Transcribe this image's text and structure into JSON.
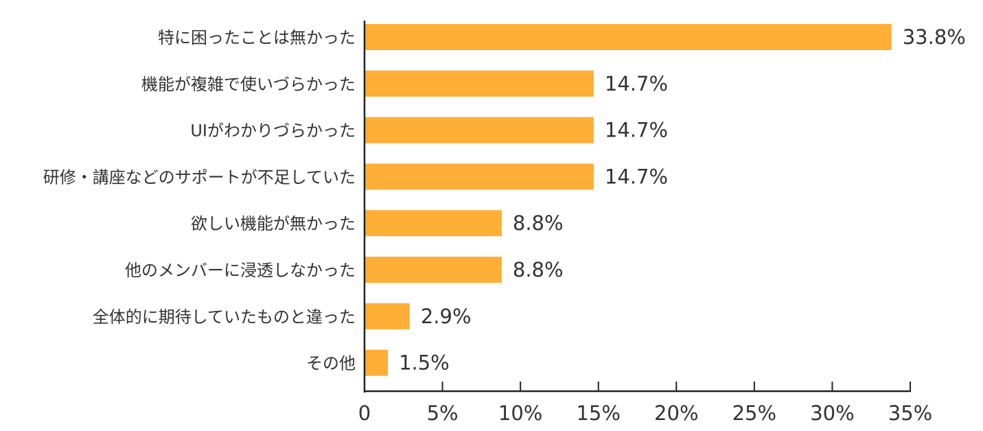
{
  "chart_data": {
    "type": "bar",
    "orientation": "horizontal",
    "categories": [
      "特に困ったことは無かった",
      "機能が複雑で使いづらかった",
      "UIがわかりづらかった",
      "研修・講座などのサポートが不足していた",
      "欲しい機能が無かった",
      "他のメンバーに浸透しなかった",
      "全体的に期待していたものと違った",
      "その他"
    ],
    "values": [
      33.8,
      14.7,
      14.7,
      14.7,
      8.8,
      8.8,
      2.9,
      1.5
    ],
    "value_labels": [
      "33.8%",
      "14.7%",
      "14.7%",
      "14.7%",
      "8.8%",
      "8.8%",
      "2.9%",
      "1.5%"
    ],
    "x_ticks": [
      0,
      5,
      10,
      15,
      20,
      25,
      30,
      35
    ],
    "x_tick_labels": [
      "0",
      "5%",
      "10%",
      "15%",
      "20%",
      "25%",
      "30%",
      "35%"
    ],
    "xlim": [
      0,
      35
    ],
    "grid": false,
    "bar_color": "#FFAE36",
    "axis_color": "#222222",
    "text_color": "#333333"
  }
}
